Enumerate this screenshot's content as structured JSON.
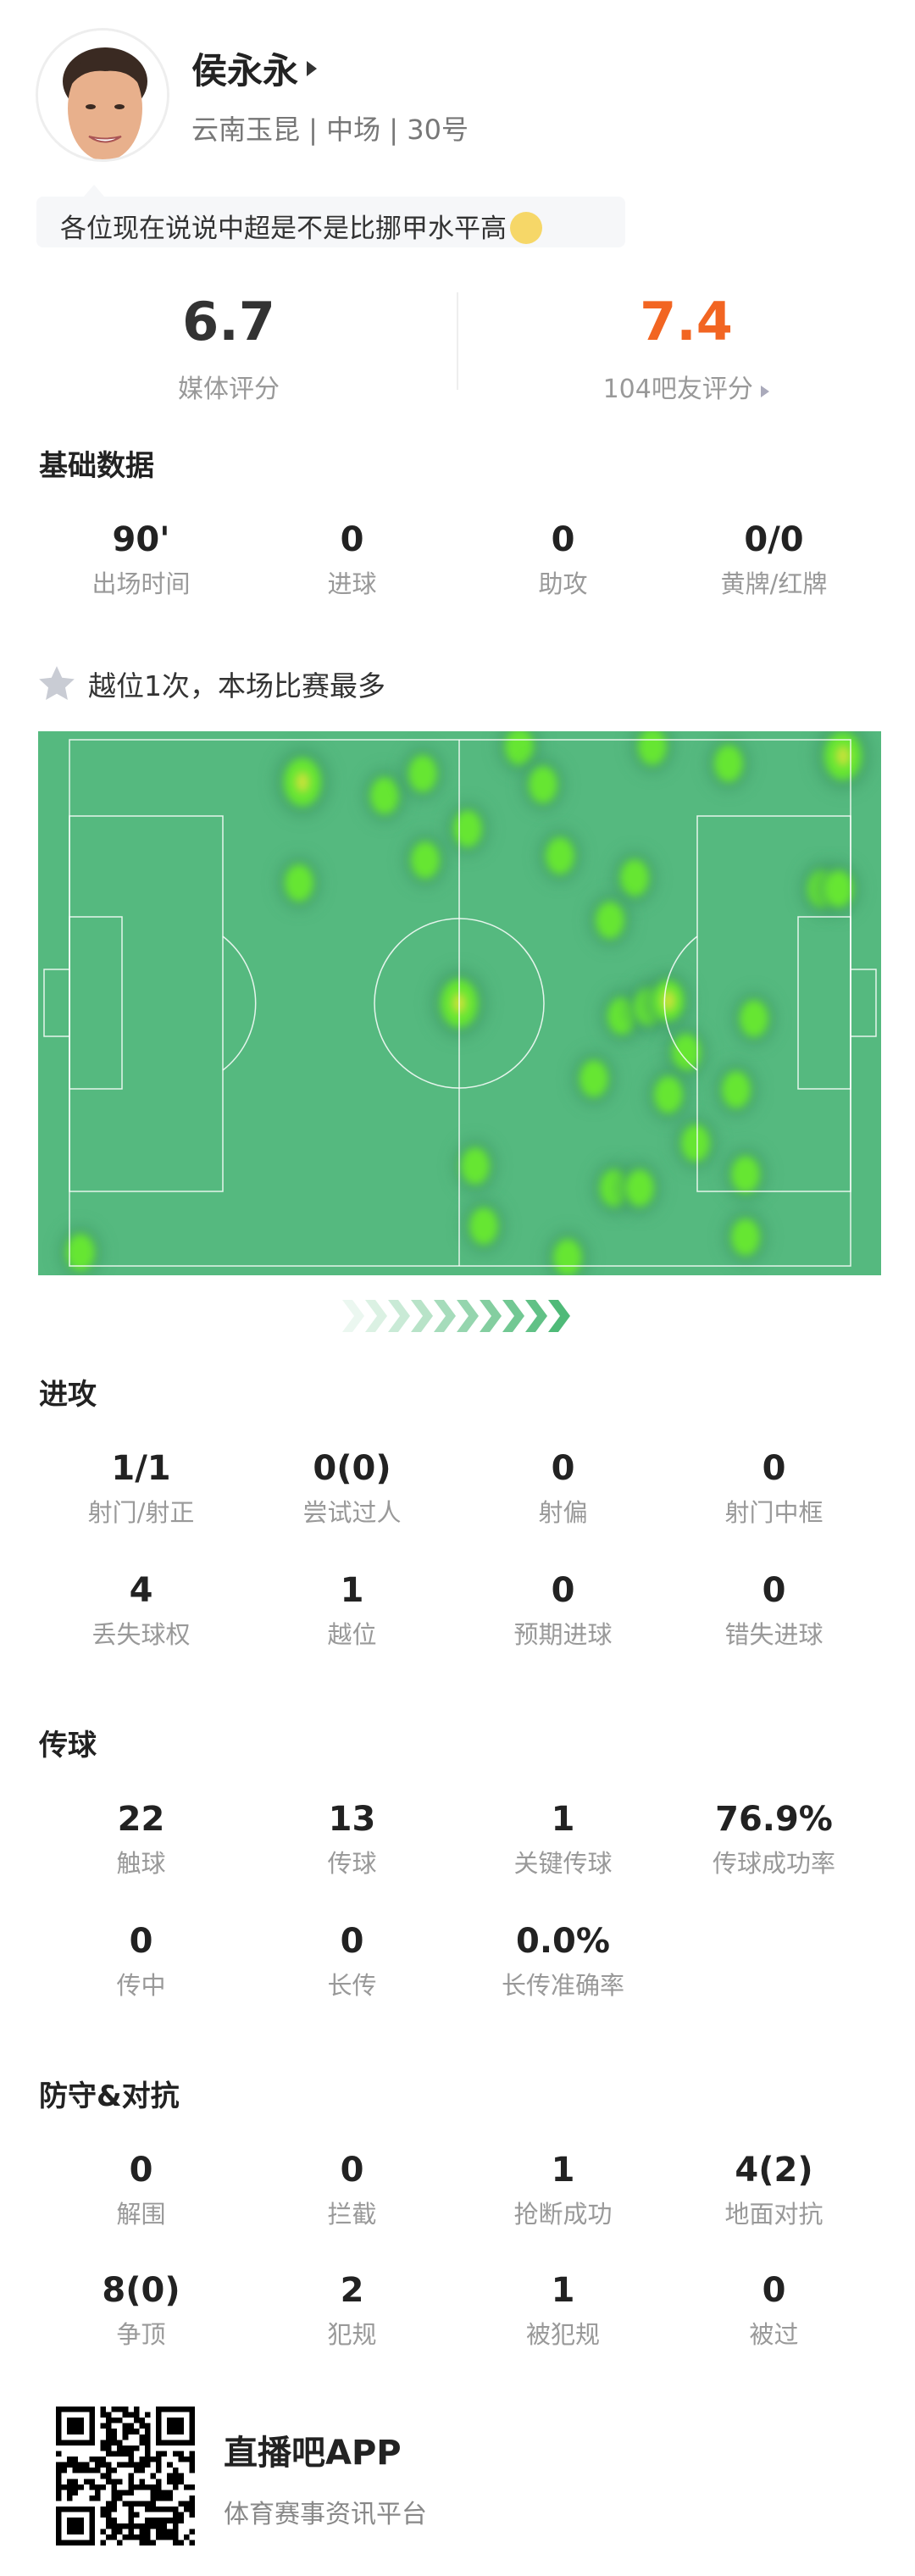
{
  "player": {
    "name": "侯永永",
    "subtitle": "云南玉昆 | 中场 | 30号",
    "comment": "各位现在说说中超是不是比挪甲水平高"
  },
  "ratings": {
    "media": {
      "value": "6.7",
      "label": "媒体评分",
      "color": "#333333"
    },
    "fans": {
      "value": "7.4",
      "label": "104吧友评分",
      "color": "#f26522"
    }
  },
  "basic": {
    "title": "基础数据",
    "stats": [
      {
        "value": "90'",
        "label": "出场时间"
      },
      {
        "value": "0",
        "label": "进球"
      },
      {
        "value": "0",
        "label": "助攻"
      },
      {
        "value": "0/0",
        "label": "黄牌/红牌"
      }
    ]
  },
  "highlight": {
    "icon": "star-icon",
    "text": "越位1次，本场比赛最多"
  },
  "heatmap": {
    "pitch_color": "#55b97f",
    "hot_color": "#66e633"
  },
  "attack": {
    "title": "进攻",
    "stats": [
      {
        "value": "1/1",
        "label": "射门/射正"
      },
      {
        "value": "0(0)",
        "label": "尝试过人"
      },
      {
        "value": "0",
        "label": "射偏"
      },
      {
        "value": "0",
        "label": "射门中框"
      },
      {
        "value": "4",
        "label": "丢失球权"
      },
      {
        "value": "1",
        "label": "越位"
      },
      {
        "value": "0",
        "label": "预期进球"
      },
      {
        "value": "0",
        "label": "错失进球"
      }
    ]
  },
  "passing": {
    "title": "传球",
    "stats": [
      {
        "value": "22",
        "label": "触球"
      },
      {
        "value": "13",
        "label": "传球"
      },
      {
        "value": "1",
        "label": "关键传球"
      },
      {
        "value": "76.9%",
        "label": "传球成功率"
      },
      {
        "value": "0",
        "label": "传中"
      },
      {
        "value": "0",
        "label": "长传"
      },
      {
        "value": "0.0%",
        "label": "长传准确率"
      }
    ]
  },
  "defense": {
    "title": "防守&对抗",
    "stats": [
      {
        "value": "0",
        "label": "解围"
      },
      {
        "value": "0",
        "label": "拦截"
      },
      {
        "value": "1",
        "label": "抢断成功"
      },
      {
        "value": "4(2)",
        "label": "地面对抗"
      },
      {
        "value": "8(0)",
        "label": "争顶"
      },
      {
        "value": "2",
        "label": "犯规"
      },
      {
        "value": "1",
        "label": "被犯规"
      },
      {
        "value": "0",
        "label": "被过"
      }
    ]
  },
  "footer": {
    "app_name": "直播吧APP",
    "slogan": "体育赛事资讯平台"
  }
}
